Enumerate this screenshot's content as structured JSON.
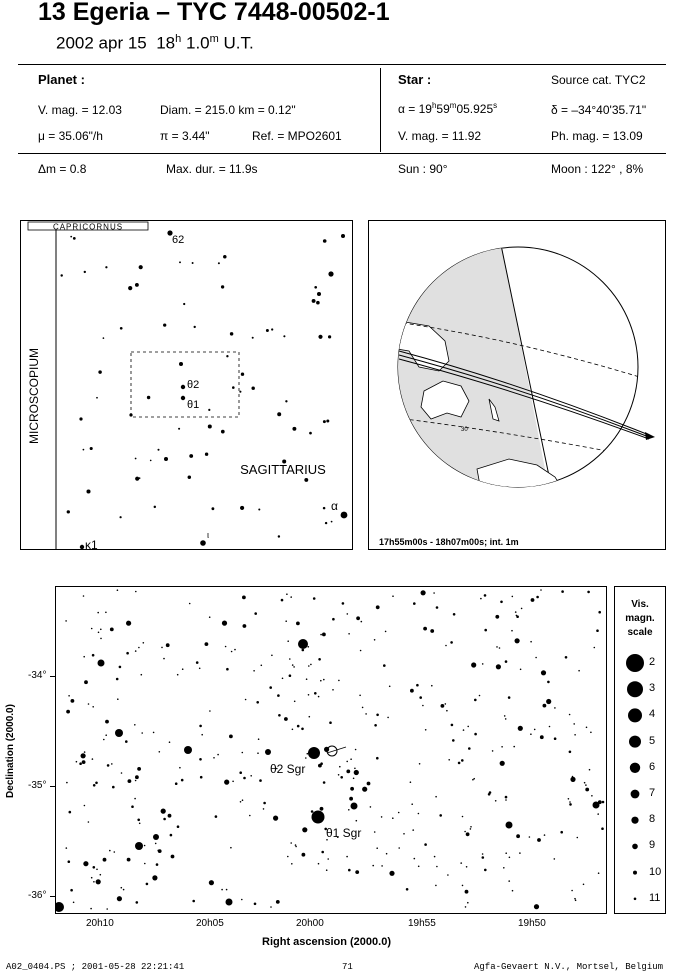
{
  "header": {
    "title": "13 Egeria  –  TYC 7448-00502-1",
    "date": "2002 apr 15",
    "time_h": "18",
    "time_m": "1.0",
    "time_suffix": "U.T."
  },
  "planet": {
    "heading": "Planet :",
    "vmag": "V. mag. = 12.03",
    "diam": "Diam. = 215.0 km = 0.12\"",
    "mu": "μ =  35.06\"/h",
    "pi": "π =  3.44\"",
    "ref": "Ref. = MPO2601"
  },
  "star": {
    "heading": "Star :",
    "source": "Source cat.  TYC2",
    "alpha_prefix": "α = 19",
    "alpha_h": "h",
    "alpha_min": "59",
    "alpha_m": "m",
    "alpha_sec": "05.925",
    "alpha_s": "s",
    "delta": "δ = –34°40'35.71\"",
    "vmag": "V. mag. = 11.92",
    "phmag": "Ph. mag. = 13.09"
  },
  "event": {
    "dm": "Δm = 0.8",
    "maxdur": "Max. dur. = 11.9s",
    "sun": "Sun :  90°",
    "moon": "Moon : 122° ,  8%"
  },
  "finder": {
    "const_top": "CAPRICORNUS",
    "const_left": "MICROSCOPIUM",
    "const_main": "SAGITTARIUS",
    "label_62": "62",
    "label_theta2": "θ2",
    "label_theta1": "θ1",
    "label_alpha": "α",
    "label_kappa1": "κ1",
    "label_iota": "ι"
  },
  "globe": {
    "caption": "17h55m00s - 18h07m00s; int.  1m",
    "label_30": "30"
  },
  "detail": {
    "ylabel": "Declination (2000.0)",
    "xlabel": "Right ascension (2000.0)",
    "yticks": [
      "-34°",
      "-35°",
      "-36°"
    ],
    "xticks": [
      "20h10",
      "20h05",
      "20h00",
      "19h55",
      "19h50"
    ],
    "label_theta2": "θ2 Sgr",
    "label_theta1": "θ1 Sgr"
  },
  "scale": {
    "title1": "Vis.",
    "title2": "magn.",
    "title3": "scale",
    "mags": [
      "2",
      "3",
      "4",
      "5",
      "6",
      "7",
      "8",
      "9",
      "10",
      "11"
    ]
  },
  "footer": {
    "left": "A02_0404.PS ; 2001-05-28 22:21:41",
    "page": "71",
    "right": "Agfa-Gevaert N.V., Mortsel, Belgium"
  }
}
